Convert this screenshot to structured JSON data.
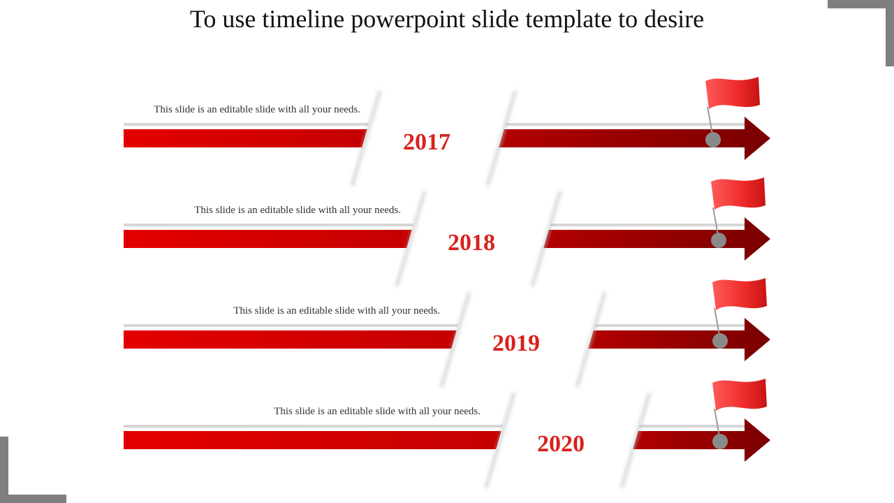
{
  "title": "To use timeline powerpoint slide template to desire",
  "colors": {
    "accent": "#e00000",
    "dark_accent": "#8c0000",
    "pin": "#8a8a8a",
    "year": "#d8211c"
  },
  "items": [
    {
      "year": "2017",
      "text": "This slide is an editable slide with all your needs."
    },
    {
      "year": "2018",
      "text": "This slide is an editable slide with all your needs."
    },
    {
      "year": "2019",
      "text": "This slide is an editable slide with all your needs."
    },
    {
      "year": "2020",
      "text": "This slide is an editable slide with all your needs."
    }
  ]
}
